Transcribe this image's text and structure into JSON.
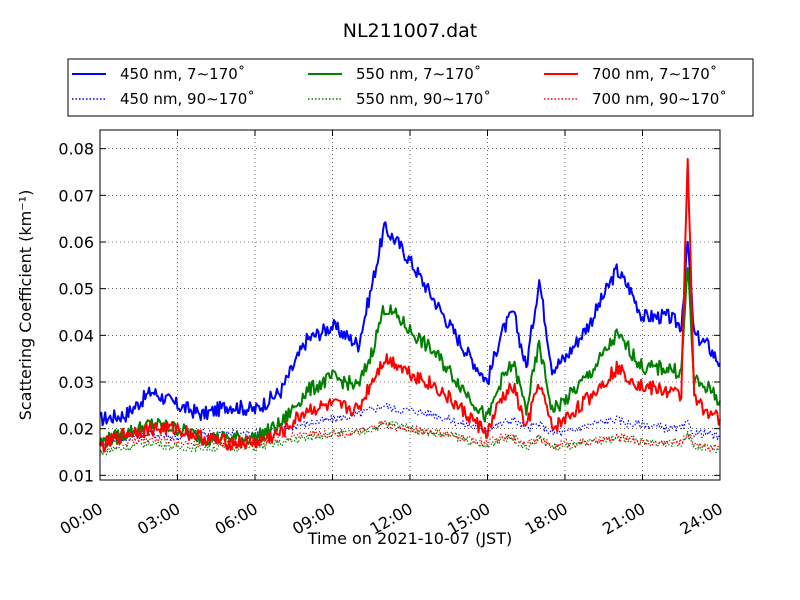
{
  "chart_data": {
    "type": "line",
    "title": "NL211007.dat",
    "xlabel": "Time on 2021-10-07 (JST)",
    "ylabel": "Scattering Coefficient (km⁻¹)",
    "xlim": [
      "00:00",
      "24:00"
    ],
    "ylim": [
      0.009,
      0.084
    ],
    "x_ticks": [
      "00:00",
      "03:00",
      "06:00",
      "09:00",
      "12:00",
      "15:00",
      "18:00",
      "21:00",
      "24:00"
    ],
    "y_ticks": [
      "0.01",
      "0.02",
      "0.03",
      "0.04",
      "0.05",
      "0.06",
      "0.07",
      "0.08"
    ],
    "grid": true,
    "legend_position": "top-outside",
    "x": [
      "00:00",
      "01:00",
      "02:00",
      "03:00",
      "04:00",
      "05:00",
      "06:00",
      "07:00",
      "08:00",
      "09:00",
      "10:00",
      "10:30",
      "11:00",
      "11:30",
      "12:00",
      "13:00",
      "14:00",
      "15:00",
      "15:30",
      "16:00",
      "16:30",
      "17:00",
      "17:30",
      "18:00",
      "19:00",
      "20:00",
      "20:30",
      "21:00",
      "22:00",
      "22:30",
      "22:45",
      "23:00",
      "23:30",
      "24:00"
    ],
    "series": [
      {
        "name": "450 nm, 7∼170˚",
        "color": "#0000ff",
        "style": "solid",
        "values": [
          0.022,
          0.023,
          0.028,
          0.025,
          0.023,
          0.025,
          0.024,
          0.028,
          0.039,
          0.042,
          0.038,
          0.05,
          0.063,
          0.06,
          0.056,
          0.047,
          0.038,
          0.03,
          0.04,
          0.045,
          0.033,
          0.052,
          0.033,
          0.035,
          0.043,
          0.054,
          0.05,
          0.044,
          0.044,
          0.042,
          0.06,
          0.04,
          0.038,
          0.034
        ]
      },
      {
        "name": "450 nm, 90∼170˚",
        "color": "#0000ff",
        "style": "dotted",
        "values": [
          0.017,
          0.018,
          0.019,
          0.018,
          0.019,
          0.019,
          0.019,
          0.02,
          0.021,
          0.022,
          0.023,
          0.024,
          0.025,
          0.024,
          0.024,
          0.023,
          0.021,
          0.02,
          0.021,
          0.022,
          0.02,
          0.021,
          0.019,
          0.019,
          0.021,
          0.022,
          0.021,
          0.021,
          0.02,
          0.02,
          0.021,
          0.019,
          0.019,
          0.018
        ]
      },
      {
        "name": "550 nm, 7∼170˚",
        "color": "#008000",
        "style": "solid",
        "values": [
          0.017,
          0.019,
          0.021,
          0.02,
          0.018,
          0.018,
          0.018,
          0.021,
          0.028,
          0.031,
          0.029,
          0.036,
          0.046,
          0.044,
          0.041,
          0.036,
          0.029,
          0.022,
          0.03,
          0.034,
          0.024,
          0.038,
          0.024,
          0.026,
          0.032,
          0.04,
          0.037,
          0.033,
          0.033,
          0.032,
          0.055,
          0.03,
          0.029,
          0.026
        ]
      },
      {
        "name": "550 nm, 90∼170˚",
        "color": "#008000",
        "style": "dotted",
        "values": [
          0.015,
          0.016,
          0.017,
          0.016,
          0.016,
          0.016,
          0.016,
          0.017,
          0.018,
          0.019,
          0.019,
          0.02,
          0.021,
          0.021,
          0.02,
          0.019,
          0.018,
          0.016,
          0.018,
          0.018,
          0.016,
          0.018,
          0.016,
          0.016,
          0.017,
          0.018,
          0.018,
          0.017,
          0.017,
          0.017,
          0.019,
          0.016,
          0.016,
          0.015
        ]
      },
      {
        "name": "700 nm, 7∼170˚",
        "color": "#ff0000",
        "style": "solid",
        "values": [
          0.016,
          0.019,
          0.02,
          0.02,
          0.018,
          0.017,
          0.017,
          0.019,
          0.024,
          0.025,
          0.024,
          0.03,
          0.035,
          0.034,
          0.032,
          0.029,
          0.024,
          0.019,
          0.026,
          0.029,
          0.02,
          0.03,
          0.02,
          0.022,
          0.027,
          0.033,
          0.031,
          0.029,
          0.028,
          0.027,
          0.079,
          0.026,
          0.024,
          0.022
        ]
      },
      {
        "name": "700 nm, 90∼170˚",
        "color": "#ff0000",
        "style": "dotted",
        "values": [
          0.015,
          0.017,
          0.018,
          0.017,
          0.017,
          0.017,
          0.017,
          0.018,
          0.019,
          0.019,
          0.019,
          0.02,
          0.021,
          0.02,
          0.02,
          0.019,
          0.018,
          0.017,
          0.018,
          0.018,
          0.017,
          0.018,
          0.016,
          0.017,
          0.017,
          0.018,
          0.018,
          0.017,
          0.017,
          0.017,
          0.019,
          0.017,
          0.016,
          0.016
        ]
      }
    ]
  }
}
